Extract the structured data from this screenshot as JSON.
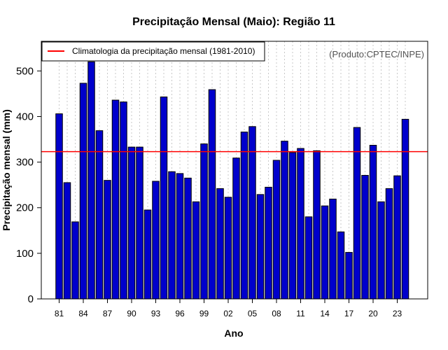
{
  "chart_data": {
    "type": "bar",
    "title": "Precipitação Mensal (Maio): Região 11",
    "xlabel": "Ano",
    "ylabel": "Precipitação mensal (mm)",
    "credit": "(Produto:CPTEC/INPE)",
    "ylim": [
      0,
      565
    ],
    "yticks": [
      0,
      100,
      200,
      300,
      400,
      500
    ],
    "categories": [
      "1981",
      "1982",
      "1983",
      "1984",
      "1985",
      "1986",
      "1987",
      "1988",
      "1989",
      "1990",
      "1991",
      "1992",
      "1993",
      "1994",
      "1995",
      "1996",
      "1997",
      "1998",
      "1999",
      "2000",
      "2001",
      "2002",
      "2003",
      "2004",
      "2005",
      "2006",
      "2007",
      "2008",
      "2009",
      "2010",
      "2011",
      "2012",
      "2013",
      "2014",
      "2015",
      "2016",
      "2017",
      "2018",
      "2019",
      "2020",
      "2021",
      "2022",
      "2023",
      "2024"
    ],
    "xtick_labels": [
      {
        "index": 0,
        "label": "81"
      },
      {
        "index": 3,
        "label": "84"
      },
      {
        "index": 6,
        "label": "87"
      },
      {
        "index": 9,
        "label": "90"
      },
      {
        "index": 12,
        "label": "93"
      },
      {
        "index": 15,
        "label": "96"
      },
      {
        "index": 18,
        "label": "99"
      },
      {
        "index": 21,
        "label": "02"
      },
      {
        "index": 24,
        "label": "05"
      },
      {
        "index": 27,
        "label": "08"
      },
      {
        "index": 30,
        "label": "11"
      },
      {
        "index": 33,
        "label": "14"
      },
      {
        "index": 36,
        "label": "17"
      },
      {
        "index": 39,
        "label": "20"
      },
      {
        "index": 42,
        "label": "23"
      }
    ],
    "values": [
      406,
      255,
      169,
      473,
      520,
      369,
      260,
      436,
      432,
      333,
      333,
      195,
      258,
      443,
      279,
      275,
      265,
      213,
      340,
      459,
      242,
      223,
      309,
      366,
      378,
      229,
      245,
      304,
      346,
      321,
      330,
      180,
      325,
      204,
      219,
      147,
      102,
      376,
      271,
      337,
      213,
      242,
      270,
      394
    ],
    "climatology": {
      "label": "Climatologia da precipitação mensal (1981-2010)",
      "value": 323
    },
    "colors": {
      "bar": "#0000cc",
      "bar_edge": "#000000",
      "climatology": "#ff0000",
      "grid": "#c8c8c8"
    },
    "grid": true,
    "legend_position": "top-left"
  }
}
